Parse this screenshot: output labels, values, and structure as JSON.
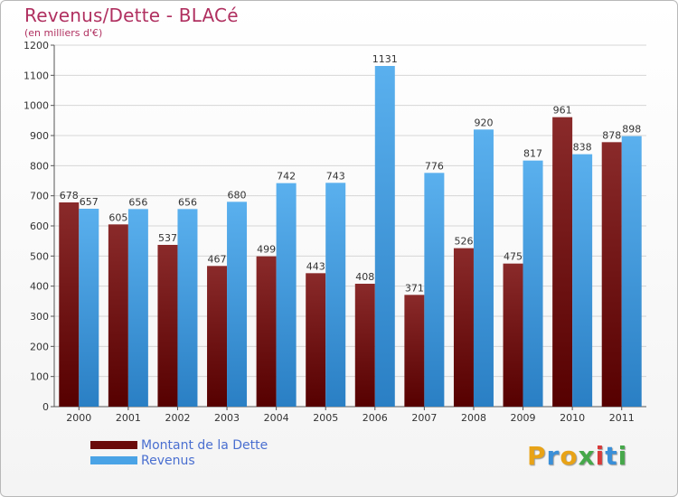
{
  "header": {
    "title": "Revenus/Dette - BLACé",
    "subtitle": "(en milliers d'€)"
  },
  "colors": {
    "dette": "#7a1818",
    "revenus": "#4aa3e6",
    "axis_text": "#333333",
    "title": "#b03060"
  },
  "chart_data": {
    "type": "bar",
    "title": "Revenus/Dette - BLACé",
    "subtitle": "(en milliers d'€)",
    "categories": [
      "2000",
      "2001",
      "2002",
      "2003",
      "2004",
      "2005",
      "2006",
      "2007",
      "2008",
      "2009",
      "2010",
      "2011"
    ],
    "series": [
      {
        "name": "Montant de la Dette",
        "values": [
          678,
          605,
          537,
          467,
          499,
          443,
          408,
          371,
          526,
          475,
          961,
          878
        ]
      },
      {
        "name": "Revenus",
        "values": [
          657,
          656,
          656,
          680,
          742,
          743,
          1131,
          776,
          920,
          817,
          838,
          898
        ]
      }
    ],
    "yticks": [
      "0",
      "100",
      "200",
      "300",
      "400",
      "500",
      "600",
      "700",
      "800",
      "900",
      "1000",
      "1100",
      "1200"
    ],
    "ylim": [
      0,
      1200
    ],
    "grid": true,
    "legend_position": "bottom-left"
  },
  "legend": [
    {
      "label": "Montant de la Dette"
    },
    {
      "label": "Revenus"
    }
  ],
  "logo": {
    "text": "Proxiti"
  }
}
